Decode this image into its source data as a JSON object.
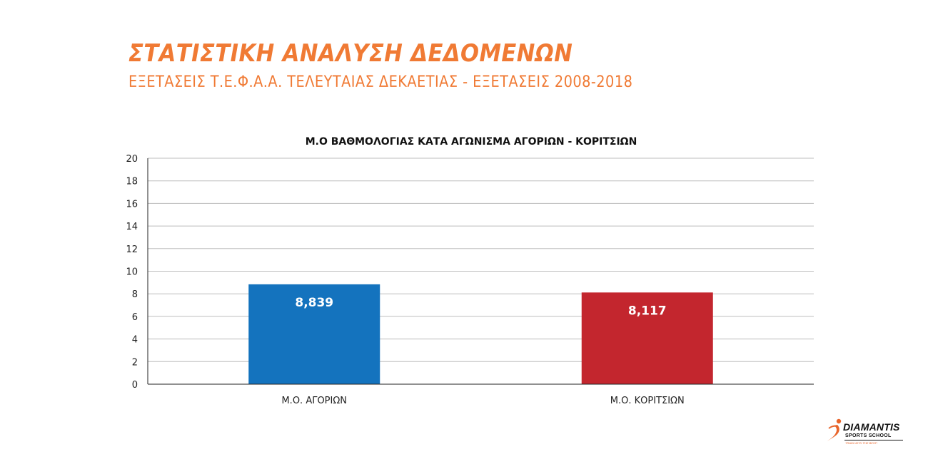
{
  "header": {
    "title": "ΣΤΑΤΙΣΤΙΚΗ ΑΝΑΛΥΣΗ ΔΕΔΟΜΕΝΩΝ",
    "subtitle": "ΕΞΕΤΑΣΕΙΣ Τ.Ε.Φ.Α.Α. ΤΕΛΕΥΤΑΙΑΣ ΔΕΚΑΕΤΙΑΣ - ΕΞΕΤΑΣΕΙΣ 2008-2018"
  },
  "chart_data": {
    "type": "bar",
    "title": "Μ.Ο ΒΑΘΜΟΛΟΓΙΑΣ ΚΑΤΑ ΑΓΩΝΙΣΜΑ ΑΓΟΡΙΩΝ - ΚΟΡΙΤΣΙΩΝ",
    "categories": [
      "Μ.Ο. ΑΓΟΡΙΩΝ",
      "Μ.Ο. ΚΟΡΙΤΣΙΩΝ"
    ],
    "values": [
      8.839,
      8.117
    ],
    "data_labels": [
      "8,839",
      "8,117"
    ],
    "colors": [
      "#1473BE",
      "#C3262E"
    ],
    "ylim": [
      0,
      20
    ],
    "yticks": [
      0,
      2,
      4,
      6,
      8,
      10,
      12,
      14,
      16,
      18,
      20
    ],
    "xlabel": "",
    "ylabel": "",
    "grid": true,
    "legend": "none"
  },
  "logo": {
    "name": "DIAMANTIS",
    "sub": "SPORTS SCHOOL",
    "tagline": "TRAIN WITH THE BEST!",
    "accent": "#E8652B"
  }
}
